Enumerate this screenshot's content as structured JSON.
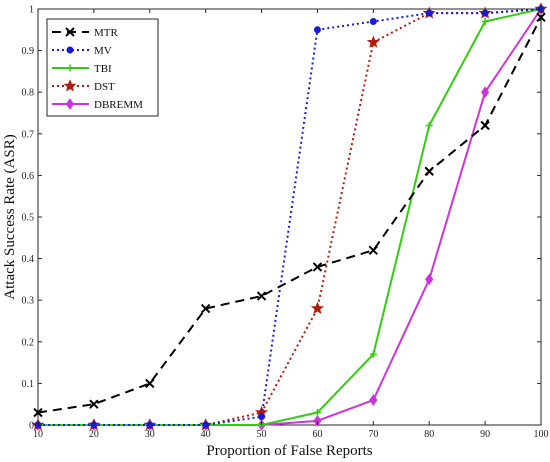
{
  "chart_data": {
    "type": "line",
    "xlabel": "Proportion of False Reports",
    "ylabel": "Attack Success Rate (ASR)",
    "x": [
      10,
      20,
      30,
      40,
      50,
      60,
      70,
      80,
      90,
      100
    ],
    "xlim": [
      10,
      100
    ],
    "ylim": [
      0,
      1
    ],
    "x_ticks": [
      "10",
      "20",
      "30",
      "40",
      "50",
      "60",
      "70",
      "80",
      "90",
      "100"
    ],
    "y_ticks": [
      "0",
      "0.1",
      "0.2",
      "0.3",
      "0.4",
      "0.5",
      "0.6",
      "0.7",
      "0.8",
      "0.9",
      "1"
    ],
    "grid": false,
    "legend_position": "top-left",
    "series": [
      {
        "name": "MTR",
        "color": "#000000",
        "dash": "dashed",
        "marker": "x",
        "values": [
          0.03,
          0.05,
          0.1,
          0.28,
          0.31,
          0.38,
          0.42,
          0.61,
          0.72,
          0.98
        ]
      },
      {
        "name": "MV",
        "color": "#1a1adb",
        "dash": "dotted",
        "marker": "dot",
        "values": [
          0.0,
          0.0,
          0.0,
          0.0,
          0.02,
          0.95,
          0.97,
          0.99,
          0.99,
          1.0
        ]
      },
      {
        "name": "TBI",
        "color": "#33cc11",
        "dash": "solid",
        "marker": "plus",
        "values": [
          0.0,
          0.0,
          0.0,
          0.0,
          0.0,
          0.03,
          0.17,
          0.72,
          0.97,
          1.0
        ]
      },
      {
        "name": "DST",
        "color": "#b31a0a",
        "dash": "dotted",
        "marker": "star",
        "values": [
          0.0,
          0.0,
          0.0,
          0.0,
          0.03,
          0.28,
          0.92,
          0.99,
          0.99,
          1.0
        ]
      },
      {
        "name": "DBREMM",
        "color": "#cc33dd",
        "dash": "solid",
        "marker": "diamond",
        "values": [
          0.0,
          0.0,
          0.0,
          0.0,
          0.0,
          0.01,
          0.06,
          0.35,
          0.8,
          1.0
        ]
      }
    ]
  }
}
